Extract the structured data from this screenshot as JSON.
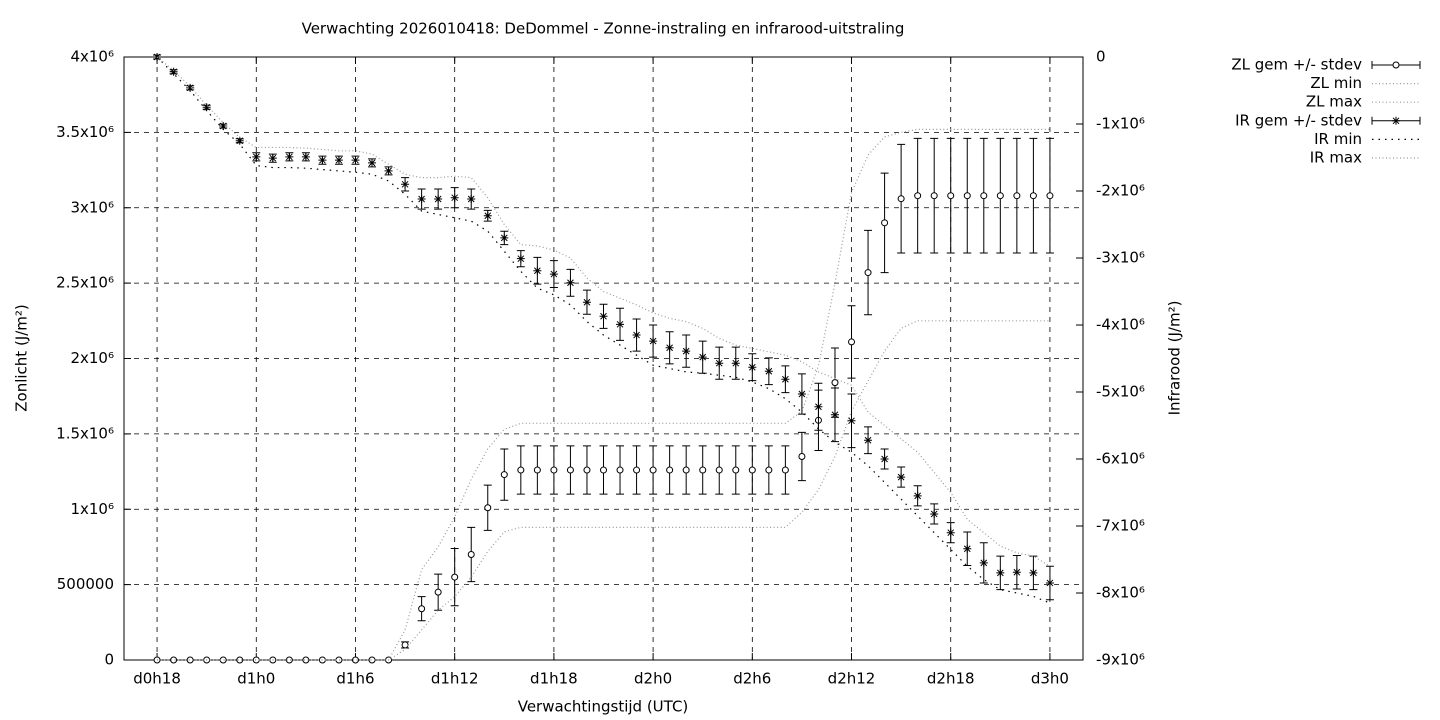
{
  "chart_data": {
    "type": "errorbar-line",
    "title": "Verwachting 2026010418: DeDommel - Zonne-instraling en infrarood-uitstraling",
    "xlabel": "Verwachtingstijd (UTC)",
    "ylabel": "Zonlicht (J/m²)",
    "y2label": "Infrarood (J/m²)",
    "x": [
      18,
      19,
      20,
      21,
      22,
      23,
      24,
      25,
      26,
      27,
      28,
      29,
      30,
      31,
      32,
      33,
      34,
      35,
      36,
      37,
      38,
      39,
      40,
      41,
      42,
      43,
      44,
      45,
      46,
      47,
      48,
      49,
      50,
      51,
      52,
      53,
      54,
      55,
      56,
      57,
      58,
      59,
      60,
      61,
      62,
      63,
      64,
      65,
      66,
      67,
      68,
      69,
      70,
      71,
      72
    ],
    "xlim": [
      16,
      74
    ],
    "xticks": [
      {
        "value": 18,
        "label": "d0h18"
      },
      {
        "value": 24,
        "label": "d1h0"
      },
      {
        "value": 30,
        "label": "d1h6"
      },
      {
        "value": 36,
        "label": "d1h12"
      },
      {
        "value": 42,
        "label": "d1h18"
      },
      {
        "value": 48,
        "label": "d2h0"
      },
      {
        "value": 54,
        "label": "d2h6"
      },
      {
        "value": 60,
        "label": "d2h12"
      },
      {
        "value": 66,
        "label": "d2h18"
      },
      {
        "value": 72,
        "label": "d3h0"
      }
    ],
    "ylim": [
      0,
      4000000
    ],
    "yticks": [
      0,
      500000,
      {
        "value": 1000000,
        "label": "1x10⁶"
      },
      {
        "value": 1500000,
        "label": "1.5x10⁶"
      },
      {
        "value": 2000000,
        "label": "2x10⁶"
      },
      {
        "value": 2500000,
        "label": "2.5x10⁶"
      },
      {
        "value": 3000000,
        "label": "3x10⁶"
      },
      {
        "value": 3500000,
        "label": "3.5x10⁶"
      },
      {
        "value": 4000000,
        "label": "4x10⁶"
      }
    ],
    "y2lim": [
      -9000000,
      0
    ],
    "y2ticks": [
      0,
      {
        "value": -1000000,
        "label": "-1x10⁶"
      },
      {
        "value": -2000000,
        "label": "-2x10⁶"
      },
      {
        "value": -3000000,
        "label": "-3x10⁶"
      },
      {
        "value": -4000000,
        "label": "-4x10⁶"
      },
      {
        "value": -5000000,
        "label": "-5x10⁶"
      },
      {
        "value": -6000000,
        "label": "-6x10⁶"
      },
      {
        "value": -7000000,
        "label": "-7x10⁶"
      },
      {
        "value": -8000000,
        "label": "-8x10⁶"
      },
      {
        "value": -9000000,
        "label": "-9x10⁶"
      }
    ],
    "grid": true,
    "legend": "top-right",
    "series": [
      {
        "name": "ZL gem +/- stdev",
        "color": "#000000",
        "marker": "circle",
        "axis": "y",
        "values": [
          0,
          0,
          0,
          0,
          0,
          0,
          0,
          0,
          0,
          0,
          0,
          0,
          0,
          0,
          0,
          100000.0,
          340000.0,
          450000.0,
          550000.0,
          700000.0,
          1010000.0,
          1230000.0,
          1260000.0,
          1260000.0,
          1260000.0,
          1260000.0,
          1260000.0,
          1260000.0,
          1260000.0,
          1260000.0,
          1260000.0,
          1260000.0,
          1260000.0,
          1260000.0,
          1260000.0,
          1260000.0,
          1260000.0,
          1260000.0,
          1260000.0,
          1350000.0,
          1590000.0,
          1840000.0,
          2110000.0,
          2570000.0,
          2900000.0,
          3060000.0,
          3080000.0,
          3080000.0,
          3080000.0,
          3080000.0,
          3080000.0,
          3080000.0,
          3080000.0,
          3080000.0,
          3080000.0
        ],
        "errors": [
          0,
          0,
          0,
          0,
          0,
          0,
          0,
          0,
          0,
          0,
          0,
          0,
          0,
          0,
          0,
          20000.0,
          80000.0,
          120000.0,
          190000.0,
          180000.0,
          150000.0,
          170000.0,
          160000.0,
          160000.0,
          160000.0,
          160000.0,
          160000.0,
          160000.0,
          160000.0,
          160000.0,
          160000.0,
          160000.0,
          160000.0,
          160000.0,
          160000.0,
          160000.0,
          160000.0,
          160000.0,
          160000.0,
          160000.0,
          200000.0,
          230000.0,
          240000.0,
          280000.0,
          330000.0,
          360000.0,
          380000.0,
          380000.0,
          380000.0,
          380000.0,
          380000.0,
          380000.0,
          380000.0,
          380000.0,
          380000.0
        ]
      },
      {
        "name": "ZL min",
        "color": "#999999",
        "axis": "y",
        "values": [
          0,
          0,
          0,
          0,
          0,
          0,
          0,
          0,
          0,
          0,
          0,
          0,
          0,
          0,
          0,
          70000.0,
          200000.0,
          330000.0,
          420000.0,
          550000.0,
          720000.0,
          850000.0,
          880000.0,
          880000.0,
          880000.0,
          880000.0,
          880000.0,
          880000.0,
          880000.0,
          880000.0,
          880000.0,
          880000.0,
          880000.0,
          880000.0,
          880000.0,
          880000.0,
          880000.0,
          880000.0,
          880000.0,
          980000.0,
          1130000.0,
          1350000.0,
          1650000.0,
          1850000.0,
          2050000.0,
          2200000.0,
          2250000.0,
          2250000.0,
          2250000.0,
          2250000.0,
          2250000.0,
          2250000.0,
          2250000.0,
          2250000.0,
          2250000.0
        ]
      },
      {
        "name": "ZL max",
        "color": "#999999",
        "axis": "y",
        "values": [
          0,
          0,
          0,
          0,
          0,
          0,
          0,
          0,
          0,
          0,
          0,
          0,
          0,
          0,
          0,
          200000.0,
          600000.0,
          750000.0,
          950000.0,
          1200000.0,
          1400000.0,
          1530000.0,
          1570000.0,
          1570000.0,
          1570000.0,
          1570000.0,
          1570000.0,
          1570000.0,
          1570000.0,
          1570000.0,
          1570000.0,
          1570000.0,
          1570000.0,
          1570000.0,
          1570000.0,
          1570000.0,
          1570000.0,
          1570000.0,
          1570000.0,
          1650000.0,
          1950000.0,
          2500000.0,
          3100000.0,
          3350000.0,
          3470000.0,
          3500000.0,
          3520000.0,
          3520000.0,
          3520000.0,
          3520000.0,
          3520000.0,
          3520000.0,
          3520000.0,
          3520000.0,
          3520000.0
        ]
      },
      {
        "name": "IR gem +/- stdev",
        "color": "#000000",
        "marker": "star",
        "axis": "y2",
        "values": [
          0,
          -220000.0,
          -460000.0,
          -750000.0,
          -1030000.0,
          -1250000.0,
          -1490000.0,
          -1510000.0,
          -1490000.0,
          -1490000.0,
          -1540000.0,
          -1540000.0,
          -1540000.0,
          -1580000.0,
          -1700000.0,
          -1900000.0,
          -2120000.0,
          -2120000.0,
          -2100000.0,
          -2120000.0,
          -2370000.0,
          -2700000.0,
          -3010000.0,
          -3190000.0,
          -3240000.0,
          -3370000.0,
          -3660000.0,
          -3870000.0,
          -3990000.0,
          -4150000.0,
          -4240000.0,
          -4340000.0,
          -4390000.0,
          -4480000.0,
          -4570000.0,
          -4570000.0,
          -4630000.0,
          -4690000.0,
          -4810000.0,
          -5030000.0,
          -5220000.0,
          -5340000.0,
          -5430000.0,
          -5720000.0,
          -6000000.0,
          -6270000.0,
          -6550000.0,
          -6820000.0,
          -7100000.0,
          -7340000.0,
          -7550000.0,
          -7700000.0,
          -7690000.0,
          -7700000.0,
          -7850000.0
        ],
        "errors": [
          30000.0,
          30000.0,
          30000.0,
          30000.0,
          30000.0,
          30000.0,
          60000.0,
          60000.0,
          60000.0,
          60000.0,
          60000.0,
          60000.0,
          60000.0,
          60000.0,
          60000.0,
          100000.0,
          150000.0,
          150000.0,
          150000.0,
          150000.0,
          80000.0,
          100000.0,
          120000.0,
          200000.0,
          200000.0,
          200000.0,
          180000.0,
          180000.0,
          240000.0,
          240000.0,
          240000.0,
          240000.0,
          240000.0,
          240000.0,
          240000.0,
          240000.0,
          200000.0,
          200000.0,
          200000.0,
          300000.0,
          350000.0,
          400000.0,
          400000.0,
          200000.0,
          150000.0,
          150000.0,
          150000.0,
          150000.0,
          150000.0,
          250000.0,
          300000.0,
          250000.0,
          250000.0,
          250000.0,
          250000.0
        ]
      },
      {
        "name": "IR min",
        "color": "#000000",
        "axis": "y2",
        "values": [
          0,
          -250000.0,
          -500000.0,
          -800000.0,
          -1080000.0,
          -1300000.0,
          -1620000.0,
          -1650000.0,
          -1650000.0,
          -1660000.0,
          -1680000.0,
          -1700000.0,
          -1720000.0,
          -1750000.0,
          -1850000.0,
          -2050000.0,
          -2300000.0,
          -2350000.0,
          -2400000.0,
          -2450000.0,
          -2600000.0,
          -2900000.0,
          -3200000.0,
          -3450000.0,
          -3550000.0,
          -3700000.0,
          -3950000.0,
          -4150000.0,
          -4300000.0,
          -4450000.0,
          -4600000.0,
          -4650000.0,
          -4700000.0,
          -4720000.0,
          -4750000.0,
          -4780000.0,
          -4850000.0,
          -4950000.0,
          -5100000.0,
          -5300000.0,
          -5550000.0,
          -5750000.0,
          -5900000.0,
          -6100000.0,
          -6350000.0,
          -6600000.0,
          -6850000.0,
          -7100000.0,
          -7350000.0,
          -7600000.0,
          -7800000.0,
          -7950000.0,
          -8000000.0,
          -8050000.0,
          -8150000.0
        ]
      },
      {
        "name": "IR max",
        "color": "#999999",
        "axis": "y2",
        "values": [
          0,
          -200000.0,
          -440000.0,
          -720000.0,
          -980000.0,
          -1200000.0,
          -1350000.0,
          -1350000.0,
          -1350000.0,
          -1360000.0,
          -1380000.0,
          -1400000.0,
          -1400000.0,
          -1450000.0,
          -1600000.0,
          -1750000.0,
          -1800000.0,
          -1800000.0,
          -1780000.0,
          -1800000.0,
          -2100000.0,
          -2500000.0,
          -2800000.0,
          -2820000.0,
          -2880000.0,
          -3000000.0,
          -3300000.0,
          -3500000.0,
          -3600000.0,
          -3700000.0,
          -3820000.0,
          -3900000.0,
          -3950000.0,
          -4050000.0,
          -4200000.0,
          -4300000.0,
          -4350000.0,
          -4400000.0,
          -4450000.0,
          -4550000.0,
          -4700000.0,
          -4800000.0,
          -4900000.0,
          -5300000.0,
          -5500000.0,
          -5700000.0,
          -5900000.0,
          -6200000.0,
          -6500000.0,
          -6900000.0,
          -7100000.0,
          -7300000.0,
          -7400000.0,
          -7450000.0,
          -7600000.0
        ]
      }
    ]
  }
}
